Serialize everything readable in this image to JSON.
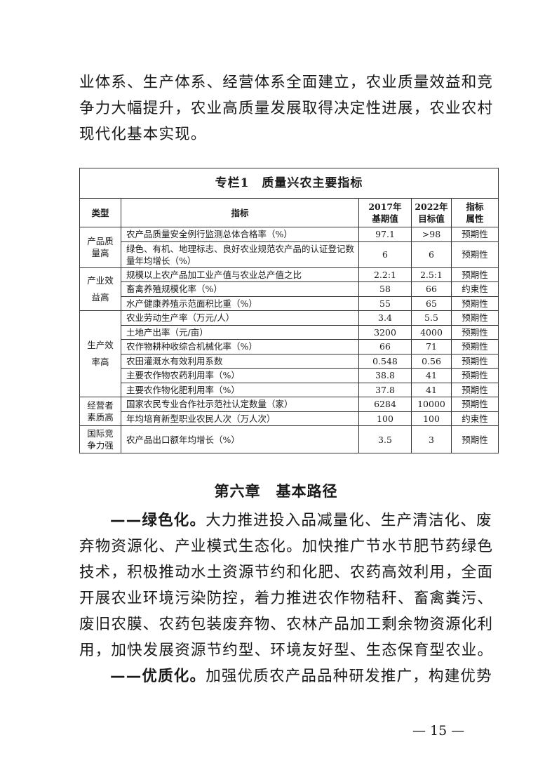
{
  "intro_text": "业体系、生产体系、经营体系全面建立，农业质量效益和竞争力大幅提升，农业高质量发展取得决定性进展，农业农村现代化基本实现。",
  "table": {
    "title": "专栏1　质量兴农主要指标",
    "headers": {
      "type": "类型",
      "indicator": "指标",
      "base_line1": "2017年",
      "base_line2": "基期值",
      "target_line1": "2022年",
      "target_line2": "目标值",
      "attr_line1": "指标",
      "attr_line2": "属性"
    },
    "groups": [
      {
        "type": "产品质量高",
        "rows": [
          {
            "indicator": "农产品质量安全例行监测总体合格率（%）",
            "base": "97.1",
            "target": ">98",
            "attr": "预期性"
          },
          {
            "indicator": "绿色、有机、地理标志、良好农业规范农产品的认证登记数量年均增长（%）",
            "base": "6",
            "target": "6",
            "attr": "预期性"
          }
        ]
      },
      {
        "type": "产业效益高",
        "rows": [
          {
            "indicator": "规模以上农产品加工业产值与农业总产值之比",
            "base": "2.2:1",
            "target": "2.5:1",
            "attr": "预期性"
          },
          {
            "indicator": "畜禽养殖规模化率（%）",
            "base": "58",
            "target": "66",
            "attr": "约束性"
          },
          {
            "indicator": "水产健康养殖示范面积比重（%）",
            "base": "55",
            "target": "65",
            "attr": "预期性"
          }
        ]
      },
      {
        "type": "生产效率高",
        "rows": [
          {
            "indicator": "农业劳动生产率（万元/人）",
            "base": "3.4",
            "target": "5.5",
            "attr": "预期性"
          },
          {
            "indicator": "土地产出率（元/亩）",
            "base": "3200",
            "target": "4000",
            "attr": "预期性"
          },
          {
            "indicator": "农作物耕种收综合机械化率（%）",
            "base": "66",
            "target": "71",
            "attr": "预期性"
          },
          {
            "indicator": "农田灌溉水有效利用系数",
            "base": "0.548",
            "target": "0.56",
            "attr": "预期性"
          },
          {
            "indicator": "主要农作物农药利用率（%）",
            "base": "38.8",
            "target": "41",
            "attr": "预期性"
          },
          {
            "indicator": "主要农作物化肥利用率（%）",
            "base": "37.8",
            "target": "41",
            "attr": "预期性"
          }
        ]
      },
      {
        "type": "经营者素质高",
        "rows": [
          {
            "indicator": "国家农民专业合作社示范社认定数量（家）",
            "base": "6284",
            "target": "10000",
            "attr": "预期性"
          },
          {
            "indicator": "年均培育新型职业农民人次（万人次）",
            "base": "100",
            "target": "100",
            "attr": "约束性"
          }
        ]
      },
      {
        "type": "国际竞争力强",
        "rows": [
          {
            "indicator": "农产品出口额年均增长（%）",
            "base": "3.5",
            "target": "3",
            "attr": "预期性"
          }
        ]
      }
    ]
  },
  "chapter_title": "第六章　基本路径",
  "paragraphs": [
    {
      "lead": "——绿色化。",
      "text": "大力推进投入品减量化、生产清洁化、废弃物资源化、产业模式生态化。加快推广节水节肥节药绿色技术，积极推动水土资源节约和化肥、农药高效利用，全面开展农业环境污染防控，着力推进农作物秸秆、畜禽粪污、废旧农膜、农药包装废弃物、农林产品加工剩余物资源化利用，加快发展资源节约型、环境友好型、生态保育型农业。"
    },
    {
      "lead": "——优质化。",
      "text": "加强优质农产品品种研发推广，构建优势"
    }
  ],
  "page_number": "— 15 —"
}
